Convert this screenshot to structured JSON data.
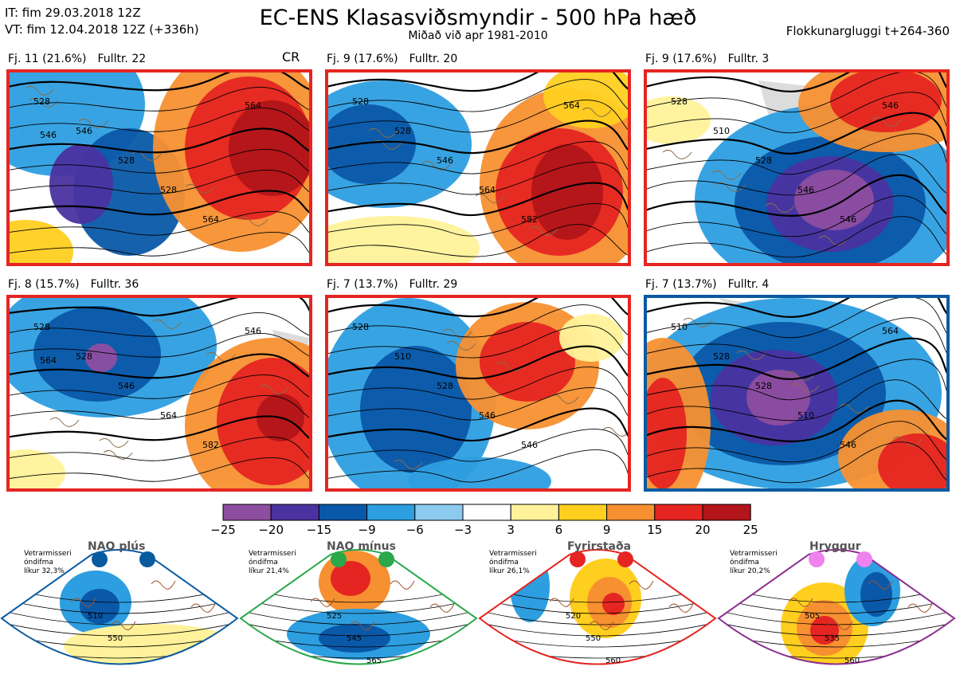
{
  "header": {
    "it": "IT: fim 29.03.2018 12Z",
    "vt": "VT: fim 12.04.2018 12Z  (+336h)",
    "title": "EC-ENS Klasasviðsmyndir - 500 hPa hæð",
    "subtitle": "Miðað við apr 1981-2010",
    "window": "Flokkunargluggi t+264-360"
  },
  "clusters": [
    {
      "freq": "Fj. 11 (21.6%)",
      "rep": "Fulltr. 22",
      "tag": "CR",
      "border": "#e52521",
      "contours": [
        "528",
        "546",
        "528",
        "528",
        "564",
        "564",
        "546"
      ]
    },
    {
      "freq": "Fj. 9 (17.6%)",
      "rep": "Fulltr. 20",
      "tag": "",
      "border": "#e52521",
      "contours": [
        "528",
        "528",
        "546",
        "564",
        "582",
        "564"
      ]
    },
    {
      "freq": "Fj. 9 (17.6%)",
      "rep": "Fulltr. 3",
      "tag": "",
      "border": "#e52521",
      "contours": [
        "528",
        "510",
        "528",
        "546",
        "546",
        "546"
      ]
    },
    {
      "freq": "Fj. 8 (15.7%)",
      "rep": "Fulltr. 36",
      "tag": "",
      "border": "#e52521",
      "contours": [
        "528",
        "528",
        "546",
        "564",
        "582",
        "546",
        "564"
      ]
    },
    {
      "freq": "Fj. 7 (13.7%)",
      "rep": "Fulltr. 29",
      "tag": "",
      "border": "#e52521",
      "contours": [
        "528",
        "510",
        "528",
        "546",
        "546"
      ]
    },
    {
      "freq": "Fj. 7 (13.7%)",
      "rep": "Fulltr. 4",
      "tag": "",
      "border": "#0a5aa0",
      "contours": [
        "510",
        "528",
        "528",
        "510",
        "546",
        "564"
      ]
    }
  ],
  "colorbar": {
    "colors": [
      "#8e4ea0",
      "#4a33a0",
      "#0a58a8",
      "#2d9ee0",
      "#8ccaf0",
      "#ffffff",
      "#fff29a",
      "#ffcf20",
      "#f79030",
      "#e52521",
      "#b2151a"
    ],
    "ticks": [
      "−25",
      "−20",
      "−15",
      "−9",
      "−6",
      "−3",
      "3",
      "6",
      "9",
      "15",
      "20",
      "25"
    ]
  },
  "regimes": [
    {
      "name": "NAO plús",
      "win1": "Vetrarmisseri",
      "win2": "óndifma",
      "prob": "líkur 32,3%",
      "color": "#0a5aa0",
      "dot": "#0a5aa0",
      "contours": [
        "510",
        "550"
      ]
    },
    {
      "name": "NAO mínus",
      "win1": "Vetrarmisseri",
      "win2": "óndifma",
      "prob": "líkur 21,4%",
      "color": "#2aa84a",
      "dot": "#2aa84a",
      "contours": [
        "525",
        "545",
        "565"
      ]
    },
    {
      "name": "Fyrirstaða",
      "win1": "Vetrarmisseri",
      "win2": "óndifma",
      "prob": "líkur 26,1%",
      "color": "#e52521",
      "dot": "#e52521",
      "contours": [
        "520",
        "550",
        "560"
      ]
    },
    {
      "name": "Hryggur",
      "win1": "Vetrarmisseri",
      "win2": "óndifma",
      "prob": "líkur 20,2%",
      "color": "#8b2e8e",
      "dot": "#ee82ee",
      "contours": [
        "505",
        "535",
        "560"
      ]
    }
  ]
}
